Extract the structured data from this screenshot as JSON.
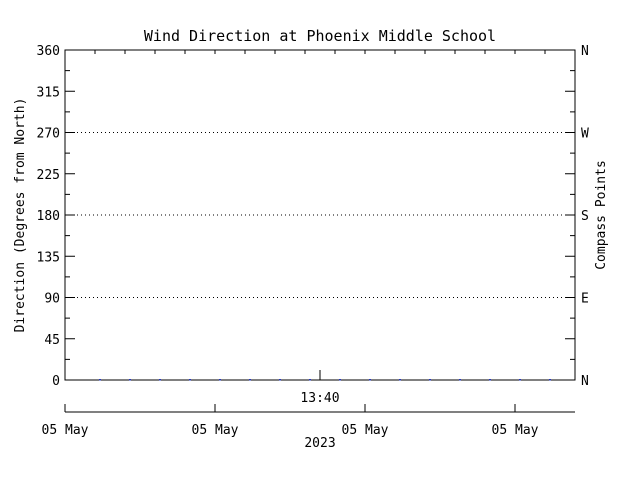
{
  "chart_data": {
    "type": "scatter",
    "title": "Wind Direction at Phoenix Middle School",
    "ylabel": "Direction (Degrees from North)",
    "ylabel_right": "Compass Points",
    "ylim": [
      0,
      360
    ],
    "yticks": [
      0,
      45,
      90,
      135,
      180,
      225,
      270,
      315,
      360
    ],
    "compass_ticks": [
      {
        "value": 0,
        "label": "N"
      },
      {
        "value": 90,
        "label": "E"
      },
      {
        "value": 180,
        "label": "S"
      },
      {
        "value": 270,
        "label": "W"
      },
      {
        "value": 360,
        "label": "N"
      }
    ],
    "dotted_gridlines_at": [
      90,
      180,
      270
    ],
    "x_time_label": "13:40",
    "x_date_ticks": [
      "05 May",
      "05 May",
      "05 May",
      "05 May"
    ],
    "x_year_label": "2023",
    "x_index_range": [
      0,
      17
    ],
    "series": [
      {
        "color": "#2233bb",
        "x": [
          1,
          2,
          3,
          4,
          5,
          6,
          7,
          8,
          9,
          10,
          11,
          12,
          13,
          14,
          15,
          16
        ],
        "values": [
          0,
          0,
          0,
          0,
          0,
          0,
          0,
          0,
          0,
          0,
          0,
          0,
          0,
          0,
          0,
          0
        ]
      }
    ]
  }
}
